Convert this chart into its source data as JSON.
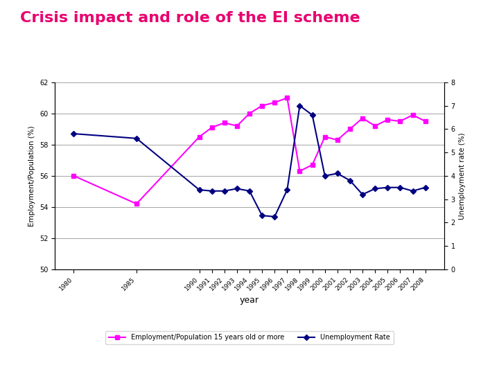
{
  "title": "Crisis impact and role of the EI scheme",
  "title_color": "#E8006E",
  "title_fontsize": 16,
  "title_fontweight": "bold",
  "xlabel": "year",
  "ylabel_left": "Employment/Population (%)",
  "ylabel_right": "Unemployment rate (%)",
  "years": [
    1980,
    1985,
    1990,
    1991,
    1992,
    1993,
    1994,
    1995,
    1996,
    1997,
    1998,
    1999,
    2000,
    2001,
    2002,
    2003,
    2004,
    2005,
    2006,
    2007,
    2008
  ],
  "emp_pop": [
    56.0,
    54.2,
    58.5,
    59.1,
    59.4,
    59.2,
    60.0,
    60.5,
    60.7,
    61.0,
    56.3,
    56.7,
    58.5,
    58.3,
    59.0,
    59.7,
    59.2,
    59.6,
    59.5,
    59.9,
    59.5
  ],
  "unemp_rate": [
    5.8,
    5.6,
    3.4,
    3.35,
    3.35,
    3.45,
    3.35,
    2.3,
    2.25,
    3.4,
    7.0,
    6.6,
    4.0,
    4.1,
    3.8,
    3.2,
    3.45,
    3.5,
    3.5,
    3.35,
    3.5
  ],
  "emp_color": "#FF00FF",
  "unemp_color": "#000080",
  "ylim_left": [
    50,
    62
  ],
  "ylim_right": [
    0,
    8
  ],
  "yticks_left": [
    50,
    52,
    54,
    56,
    58,
    60,
    62
  ],
  "yticks_right": [
    0,
    1,
    2,
    3,
    4,
    5,
    6,
    7,
    8
  ],
  "legend_labels": [
    "Employment/Population 15 years old or more",
    "Unemployment Rate"
  ],
  "background_color": "#ffffff"
}
